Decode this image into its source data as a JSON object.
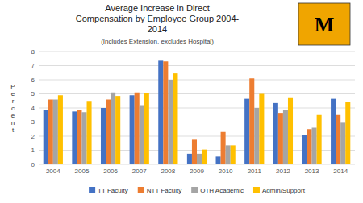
{
  "chart_data": {
    "type": "bar",
    "title": [
      "Average Increase in Direct",
      "Compensation by Employee Group 2004-",
      "2014"
    ],
    "subtitle": "(Includes Extension, excludes Hospital)",
    "y_label": "P\ne\nr\nc\ne\nn\nt",
    "annotations": [
      "M"
    ],
    "categories": [
      "2004",
      "2005",
      "2006",
      "2007",
      "2008",
      "2009",
      "2010",
      "2011",
      "2012",
      "2013",
      "2014"
    ],
    "series": [
      {
        "name": "TT Faculty",
        "color": "#4472C4",
        "values": [
          3.85,
          3.75,
          4.0,
          4.9,
          7.35,
          0.75,
          0.55,
          4.65,
          4.35,
          2.1,
          4.65
        ]
      },
      {
        "name": "NTT Faculty",
        "color": "#ED7D31",
        "values": [
          4.6,
          3.85,
          4.6,
          5.1,
          7.3,
          1.75,
          2.3,
          6.1,
          3.65,
          2.5,
          3.5
        ]
      },
      {
        "name": "OTH Academic",
        "color": "#A5A5A5",
        "values": [
          4.6,
          3.7,
          5.1,
          4.2,
          6.0,
          0.75,
          1.35,
          4.0,
          3.85,
          2.6,
          2.95
        ]
      },
      {
        "name": "Admin/Support",
        "color": "#FFC000",
        "values": [
          4.9,
          4.5,
          4.85,
          5.05,
          6.45,
          1.05,
          1.35,
          5.0,
          4.7,
          3.5,
          4.45
        ]
      }
    ],
    "ylim": [
      0,
      8
    ],
    "yticks": [
      0,
      1,
      2,
      3,
      4,
      5,
      6,
      7,
      8
    ],
    "grid": true,
    "legend": "bottom"
  }
}
